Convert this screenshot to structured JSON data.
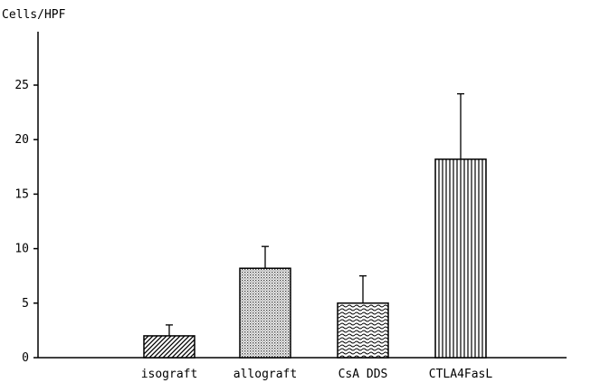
{
  "chart_data": {
    "type": "bar",
    "ylabel": "Cells/HPF",
    "xlabel": "",
    "title": "",
    "categories": [
      "isograft",
      "allograft",
      "CsA DDS",
      "CTLA4FasL"
    ],
    "values": [
      2.0,
      8.2,
      5.0,
      18.2
    ],
    "error_upper": [
      3.0,
      10.2,
      7.5,
      24.2
    ],
    "ylim": [
      0,
      30
    ],
    "yticks": [
      0,
      5,
      10,
      15,
      20,
      25
    ],
    "ytick_labels": [
      "0",
      "5",
      "10",
      "15",
      "20",
      "25"
    ],
    "patterns": [
      "diagonal-hatch",
      "dot-stipple",
      "wavy-lines",
      "vertical-lines"
    ],
    "grid": false,
    "legend": "none"
  }
}
